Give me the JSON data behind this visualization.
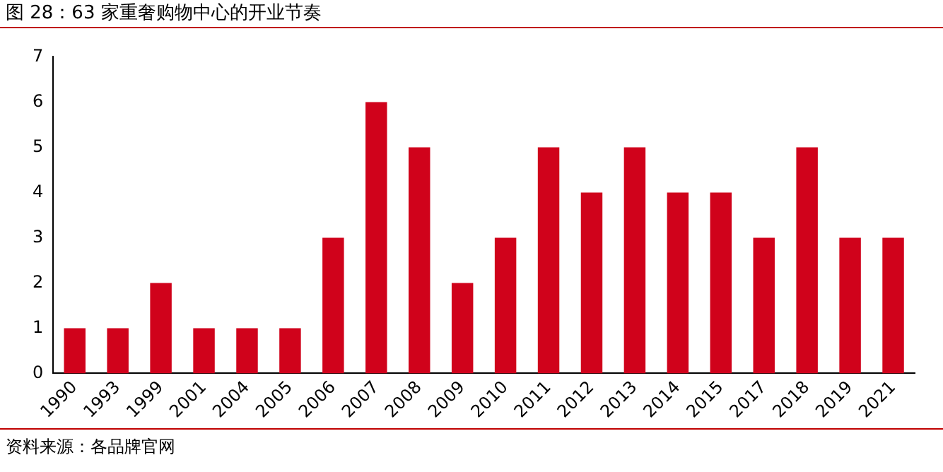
{
  "chart_data": {
    "type": "bar",
    "title": "图 28：63 家重奢购物中心的开业节奏",
    "categories": [
      "1990",
      "1993",
      "1999",
      "2001",
      "2004",
      "2005",
      "2006",
      "2007",
      "2008",
      "2009",
      "2010",
      "2011",
      "2012",
      "2013",
      "2014",
      "2015",
      "2017",
      "2018",
      "2019",
      "2021"
    ],
    "values": [
      1,
      1,
      2,
      1,
      1,
      1,
      3,
      6,
      5,
      2,
      3,
      5,
      4,
      5,
      4,
      4,
      3,
      5,
      3,
      3
    ],
    "color": "#d0021b",
    "ylim": [
      0,
      7
    ],
    "yticks": [
      0,
      1,
      2,
      3,
      4,
      5,
      6,
      7
    ],
    "grid": false,
    "legend": false,
    "annotations": [
      "资料来源：各品牌官网"
    ]
  }
}
